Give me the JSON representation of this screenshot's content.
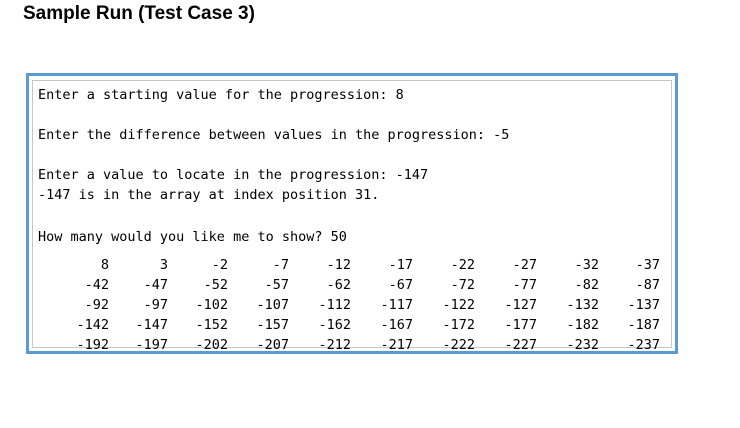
{
  "heading": "Sample Run (Test Case 3)",
  "console": {
    "lines": [
      "Enter a starting value for the progression: 8",
      "Enter the difference between values in the progression: -5",
      "Enter a value to locate in the progression: -147",
      "-147 is in the array at index position 31.",
      "How many would you like me to show? 50"
    ],
    "table": [
      [
        "8",
        "3",
        "-2",
        "-7",
        "-12",
        "-17",
        "-22",
        "-27",
        "-32",
        "-37"
      ],
      [
        "-42",
        "-47",
        "-52",
        "-57",
        "-62",
        "-67",
        "-72",
        "-77",
        "-82",
        "-87"
      ],
      [
        "-92",
        "-97",
        "-102",
        "-107",
        "-112",
        "-117",
        "-122",
        "-127",
        "-132",
        "-137"
      ],
      [
        "-142",
        "-147",
        "-152",
        "-157",
        "-162",
        "-167",
        "-172",
        "-177",
        "-182",
        "-187"
      ],
      [
        "-192",
        "-197",
        "-202",
        "-207",
        "-212",
        "-217",
        "-222",
        "-227",
        "-232",
        "-237"
      ]
    ]
  },
  "colors": {
    "console_border": "#5b9bd5",
    "inner_border": "#c6c6c6",
    "text": "#000000"
  }
}
